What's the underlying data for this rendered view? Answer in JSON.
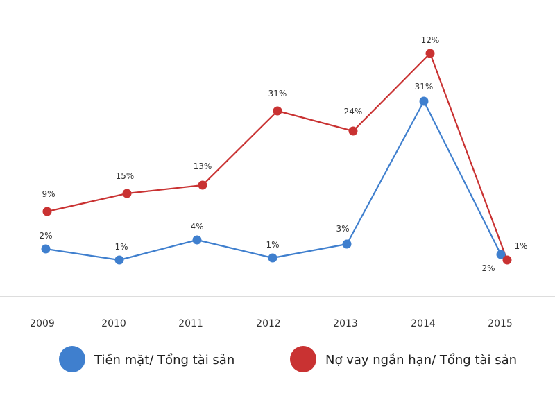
{
  "chart_data": {
    "type": "line",
    "x": [
      "2009",
      "2010",
      "2011",
      "2012",
      "2013",
      "2014",
      "2015"
    ],
    "series": [
      {
        "name": "Tiền mặt/ Tổng tài sản",
        "color": "#3f7fce",
        "labels": [
          "2%",
          "1%",
          "4%",
          "1%",
          "3%",
          "31%",
          "2%"
        ]
      },
      {
        "name": "Nợ vay ngắn hạn/ Tổng tài sản",
        "color": "#c93232",
        "labels": [
          "9%",
          "15%",
          "13%",
          "31%",
          "24%",
          "12%",
          "1%"
        ]
      }
    ],
    "axis_line_color": "#bbbbbb",
    "grid": false,
    "legend_position": "bottom"
  }
}
